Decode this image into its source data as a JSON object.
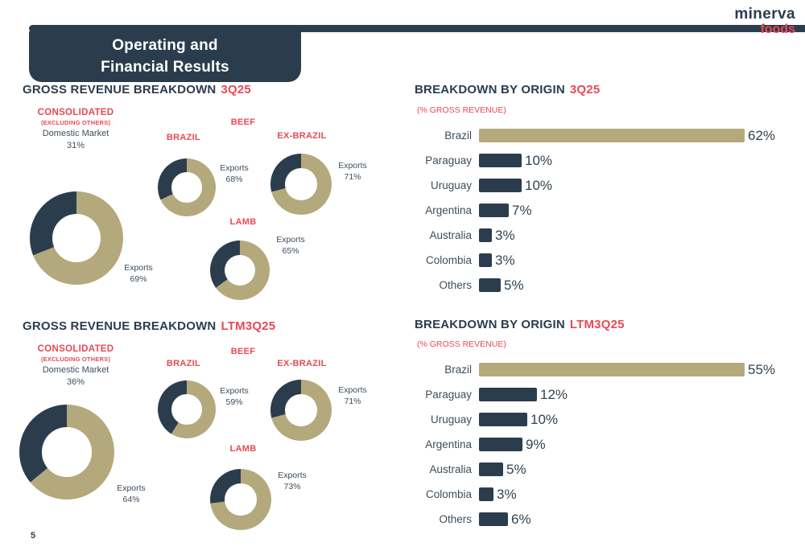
{
  "colors": {
    "navy": "#2b3d4d",
    "khaki": "#b4a97c",
    "red": "#e84953"
  },
  "logo": {
    "brand": "minerva",
    "sub": "foods"
  },
  "title": {
    "line1": "Operating and",
    "line2": "Financial Results"
  },
  "page_number": "5",
  "left_sections": [
    {
      "heading": "GROSS REVENUE BREAKDOWN",
      "period": "3Q25",
      "category_label": "BEEF",
      "consolidated": {
        "title": "CONSOLIDATED",
        "subtitle": "(EXCLUDING OTHERS)",
        "slice1_label": "Domestic Market",
        "slice1_pct": "31%",
        "slice2_label": "Exports",
        "slice2_pct": "69%",
        "exports_value": 69
      },
      "brazil": {
        "name": "BRAZIL",
        "label": "Exports",
        "pct": "68%",
        "value": 68
      },
      "ex_brazil": {
        "name": "EX-BRAZIL",
        "label": "Exports",
        "pct": "71%",
        "value": 71
      },
      "lamb": {
        "name": "LAMB",
        "label": "Exports",
        "pct": "65%",
        "value": 65
      }
    },
    {
      "heading": "GROSS REVENUE BREAKDOWN",
      "period": "LTM3Q25",
      "category_label": "BEEF",
      "consolidated": {
        "title": "CONSOLIDATED",
        "subtitle": "(EXCLUDING OTHERS)",
        "slice1_label": "Domestic Market",
        "slice1_pct": "36%",
        "slice2_label": "Exports",
        "slice2_pct": "64%",
        "exports_value": 64
      },
      "brazil": {
        "name": "BRAZIL",
        "label": "Exports",
        "pct": "59%",
        "value": 59
      },
      "ex_brazil": {
        "name": "EX-BRAZIL",
        "label": "Exports",
        "pct": "71%",
        "value": 71
      },
      "lamb": {
        "name": "LAMB",
        "label": "Exports",
        "pct": "73%",
        "value": 73
      }
    }
  ],
  "right_sections": [
    {
      "heading": "BREAKDOWN BY ORIGIN",
      "period": "3Q25",
      "subtitle": "(% GROSS REVENUE)",
      "bars": [
        {
          "label": "Brazil",
          "pct": "62%",
          "value": 62,
          "highlight": true
        },
        {
          "label": "Paraguay",
          "pct": "10%",
          "value": 10,
          "highlight": false
        },
        {
          "label": "Uruguay",
          "pct": "10%",
          "value": 10,
          "highlight": false
        },
        {
          "label": "Argentina",
          "pct": "7%",
          "value": 7,
          "highlight": false
        },
        {
          "label": "Australia",
          "pct": "3%",
          "value": 3,
          "highlight": false
        },
        {
          "label": "Colombia",
          "pct": "3%",
          "value": 3,
          "highlight": false
        },
        {
          "label": "Others",
          "pct": "5%",
          "value": 5,
          "highlight": false
        }
      ]
    },
    {
      "heading": "BREAKDOWN BY ORIGIN",
      "period": "LTM3Q25",
      "subtitle": "(% GROSS REVENUE)",
      "bars": [
        {
          "label": "Brazil",
          "pct": "55%",
          "value": 55,
          "highlight": true
        },
        {
          "label": "Paraguay",
          "pct": "12%",
          "value": 12,
          "highlight": false
        },
        {
          "label": "Uruguay",
          "pct": "10%",
          "value": 10,
          "highlight": false
        },
        {
          "label": "Argentina",
          "pct": "9%",
          "value": 9,
          "highlight": false
        },
        {
          "label": "Australia",
          "pct": "5%",
          "value": 5,
          "highlight": false
        },
        {
          "label": "Colombia",
          "pct": "3%",
          "value": 3,
          "highlight": false
        },
        {
          "label": "Others",
          "pct": "6%",
          "value": 6,
          "highlight": false
        }
      ]
    }
  ],
  "chart_data": [
    {
      "type": "pie",
      "title": "Consolidated (excluding others) - 3Q25",
      "labels": [
        "Domestic Market",
        "Exports"
      ],
      "values": [
        31,
        69
      ]
    },
    {
      "type": "pie",
      "title": "Beef Brazil - 3Q25",
      "labels": [
        "Exports",
        "Unlabeled"
      ],
      "values": [
        68,
        32
      ]
    },
    {
      "type": "pie",
      "title": "Beef Ex-Brazil - 3Q25",
      "labels": [
        "Exports",
        "Unlabeled"
      ],
      "values": [
        71,
        29
      ]
    },
    {
      "type": "pie",
      "title": "Lamb - 3Q25",
      "labels": [
        "Exports",
        "Unlabeled"
      ],
      "values": [
        65,
        35
      ]
    },
    {
      "type": "pie",
      "title": "Consolidated (excluding others) - LTM3Q25",
      "labels": [
        "Domestic Market",
        "Exports"
      ],
      "values": [
        36,
        64
      ]
    },
    {
      "type": "pie",
      "title": "Beef Brazil - LTM3Q25",
      "labels": [
        "Exports",
        "Unlabeled"
      ],
      "values": [
        59,
        41
      ]
    },
    {
      "type": "pie",
      "title": "Beef Ex-Brazil - LTM3Q25",
      "labels": [
        "Exports",
        "Unlabeled"
      ],
      "values": [
        71,
        29
      ]
    },
    {
      "type": "pie",
      "title": "Lamb - LTM3Q25",
      "labels": [
        "Exports",
        "Unlabeled"
      ],
      "values": [
        73,
        27
      ]
    },
    {
      "type": "bar",
      "orientation": "horizontal",
      "title": "Breakdown by Origin 3Q25 (% gross revenue)",
      "categories": [
        "Brazil",
        "Paraguay",
        "Uruguay",
        "Argentina",
        "Australia",
        "Colombia",
        "Others"
      ],
      "values": [
        62,
        10,
        10,
        7,
        3,
        3,
        5
      ],
      "xlim": [
        0,
        62
      ]
    },
    {
      "type": "bar",
      "orientation": "horizontal",
      "title": "Breakdown by Origin LTM3Q25 (% gross revenue)",
      "categories": [
        "Brazil",
        "Paraguay",
        "Uruguay",
        "Argentina",
        "Australia",
        "Colombia",
        "Others"
      ],
      "values": [
        55,
        12,
        10,
        9,
        5,
        3,
        6
      ],
      "xlim": [
        0,
        55
      ]
    }
  ]
}
